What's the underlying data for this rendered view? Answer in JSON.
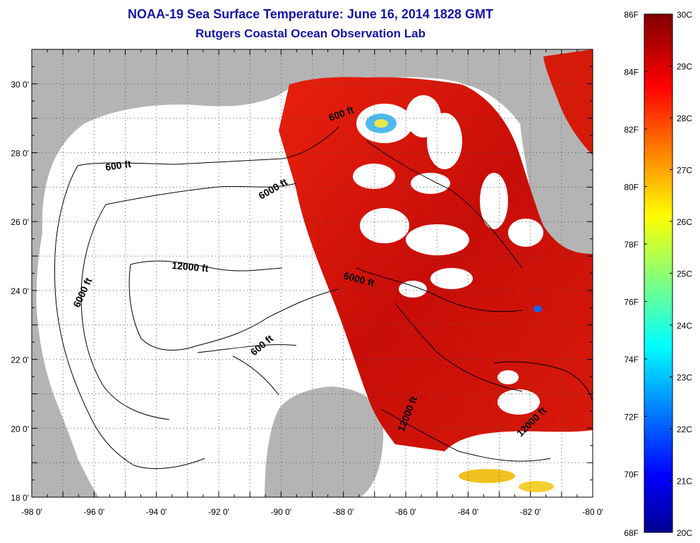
{
  "header": {
    "title": "NOAA-19 Sea Surface Temperature:  June 16, 2014 1828 GMT",
    "subtitle": "Rutgers Coastal Ocean Observation Lab"
  },
  "map": {
    "lon_range": [
      -98,
      -80
    ],
    "lat_range": [
      18,
      31
    ],
    "x_tick_labels": [
      "-98 0'",
      "-96 0'",
      "-94 0'",
      "-92 0'",
      "-90 0'",
      "-88 0'",
      "-86 0'",
      "-84 0'",
      "-82 0'",
      "-80 0'"
    ],
    "y_tick_labels": [
      "18 0'",
      "20 0'",
      "22 0'",
      "24 0'",
      "26 0'",
      "28 0'",
      "30 0'"
    ],
    "land_color": "#b4b4b4",
    "no_data_color": "#ffffff",
    "grid": "dotted",
    "contour_labels": [
      "600 ft",
      "6000 ft",
      "12000 ft",
      "6000 ft",
      "6000 ft",
      "600 ft",
      "600 ft",
      "12000 ft",
      "12000 ft"
    ]
  },
  "colorbar": {
    "f_labels": [
      "86F",
      "84F",
      "82F",
      "80F",
      "78F",
      "76F",
      "74F",
      "72F",
      "70F",
      "68F"
    ],
    "c_labels": [
      "30C",
      "29C",
      "28C",
      "27C",
      "26C",
      "25C",
      "24C",
      "23C",
      "22C",
      "21C",
      "20C"
    ],
    "colormap": "jet",
    "range_c": [
      20,
      30
    ]
  }
}
